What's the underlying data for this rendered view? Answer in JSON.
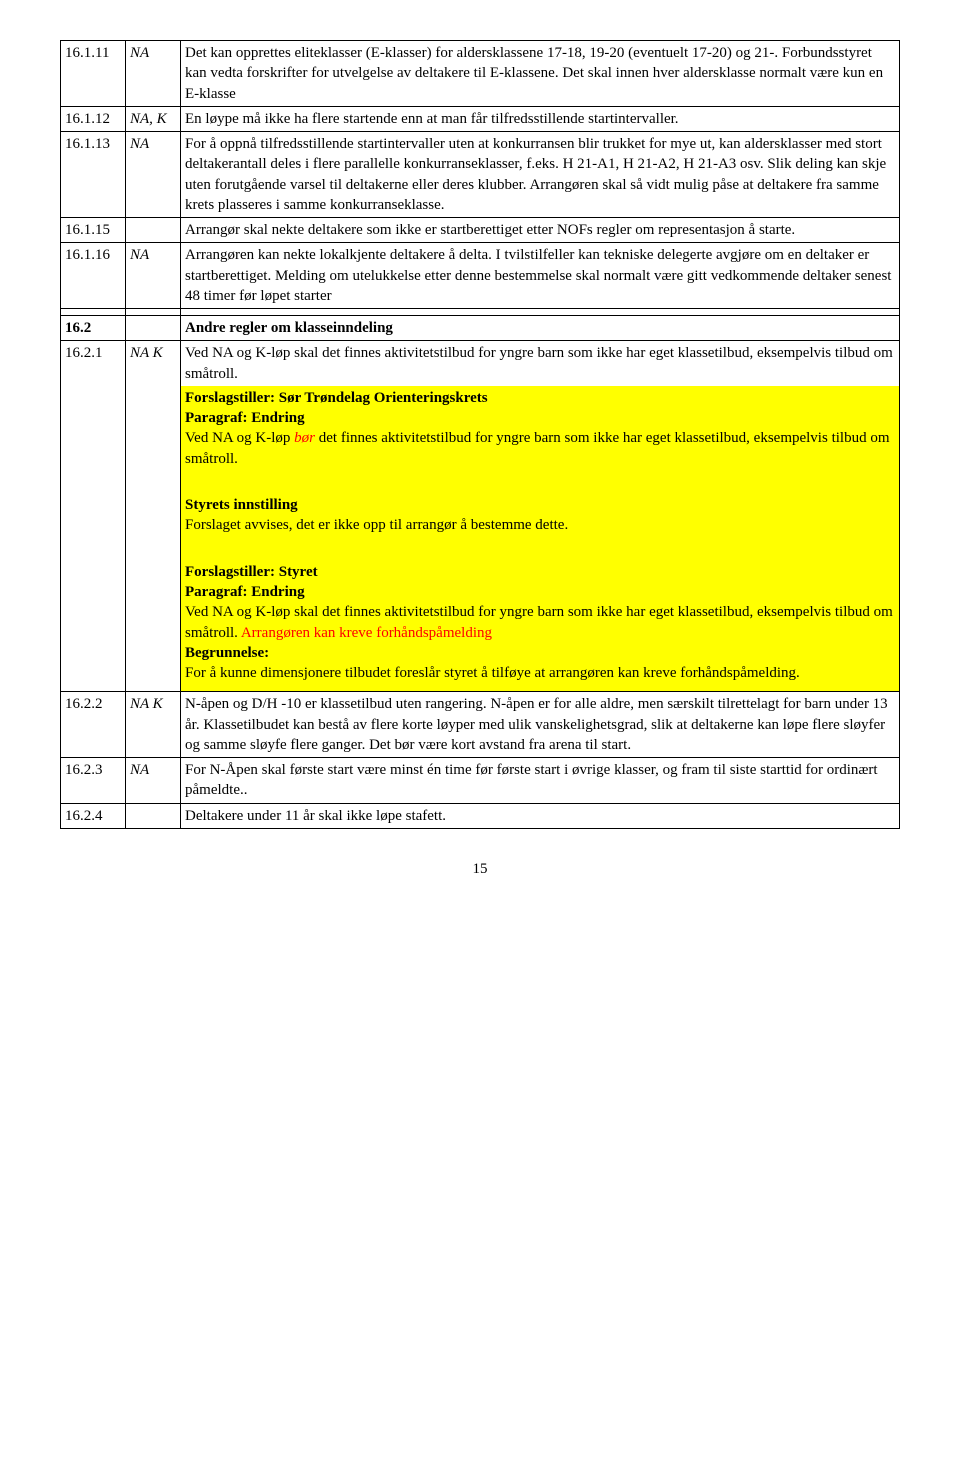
{
  "rows": {
    "r16_1_11": {
      "num": "16.1.11",
      "col2": "NA",
      "text": "Det kan opprettes eliteklasser (E-klasser) for aldersklassene 17-18, 19-20 (eventuelt 17-20) og 21-. Forbundsstyret kan vedta forskrifter for utvelgelse av deltakere til E-klassene. Det skal innen hver aldersklasse normalt være kun en E-klasse"
    },
    "r16_1_12": {
      "num": "16.1.12",
      "col2": "NA, K",
      "text": "En løype må ikke ha flere startende enn at man får tilfredsstillende startintervaller."
    },
    "r16_1_13": {
      "num": "16.1.13",
      "col2": "NA",
      "text": "For å oppnå tilfredsstillende startintervaller uten at konkurransen blir trukket for mye ut, kan aldersklasser med stort deltakerantall deles i flere parallelle konkurranseklasser, f.eks. H 21-A1, H 21-A2, H 21-A3 osv. Slik deling kan skje uten forutgående varsel til deltakerne eller deres klubber. Arrangøren skal så vidt mulig påse at deltakere fra samme krets plasseres i samme konkurranseklasse."
    },
    "r16_1_15": {
      "num": "16.1.15",
      "col2": "",
      "text": "Arrangør skal nekte deltakere som ikke er startberettiget etter NOFs regler om representasjon å starte."
    },
    "r16_1_16": {
      "num": "16.1.16",
      "col2": "NA",
      "text": "Arrangøren kan nekte lokalkjente deltakere å delta. I tvilstilfeller kan tekniske delegerte avgjøre om en deltaker er startberettiget. Melding om utelukkelse etter denne bestemmelse skal normalt være gitt vedkommende deltaker senest 48 timer før løpet starter"
    },
    "r16_2": {
      "num": "16.2",
      "text": "Andre regler om klasseinndeling"
    },
    "r16_2_1": {
      "num": "16.2.1",
      "col2": "NA K",
      "intro": "Ved NA og K-løp skal det finnes aktivitetstilbud for yngre barn som ikke har eget klassetilbud, eksempelvis tilbud om småtroll.",
      "hl1_l1": "Forslagstiller: Sør Trøndelag Orienteringskrets",
      "hl1_l2": "Paragraf: Endring",
      "hl1_l3a": "Ved NA og K-løp ",
      "hl1_l3b": "bør",
      "hl1_l3c": " det finnes aktivitetstilbud for yngre barn som ikke har eget klassetilbud, eksempelvis tilbud om småtroll.",
      "hl2_l1": "Styrets innstilling",
      "hl2_l2": "Forslaget avvises, det er ikke opp til arrangør å bestemme dette.",
      "hl3_l1": "Forslagstiller: Styret",
      "hl3_l2": "Paragraf: Endring",
      "hl3_l3a": "Ved NA og K-løp skal det finnes aktivitetstilbud for yngre barn som ikke har eget klassetilbud, eksempelvis tilbud om småtroll.",
      "hl3_l3b": " Arrangøren kan kreve forhåndspåmelding",
      "hl3_l4": "Begrunnelse:",
      "hl3_l5": "For å kunne dimensjonere tilbudet foreslår styret å tilføye at arrangøren kan kreve forhåndspåmelding."
    },
    "r16_2_2": {
      "num": "16.2.2",
      "col2": "NA K",
      "text": "N-åpen og D/H -10 er klassetilbud uten rangering. N-åpen er for alle aldre, men særskilt tilrettelagt for barn under 13 år. Klassetilbudet kan bestå av flere korte løyper med ulik vanskelighetsgrad,  slik at deltakerne kan løpe flere sløyfer og samme sløyfe flere ganger. Det  bør være kort avstand fra arena til start."
    },
    "r16_2_3": {
      "num": "16.2.3",
      "col2": "NA",
      "text": "For N-Åpen skal første start være minst én  time før første start i øvrige klasser, og fram til siste starttid for ordinært påmeldte.."
    },
    "r16_2_4": {
      "num": "16.2.4",
      "col2": "",
      "text": "Deltakere under 11 år skal ikke løpe stafett."
    }
  },
  "pageNumber": "15"
}
